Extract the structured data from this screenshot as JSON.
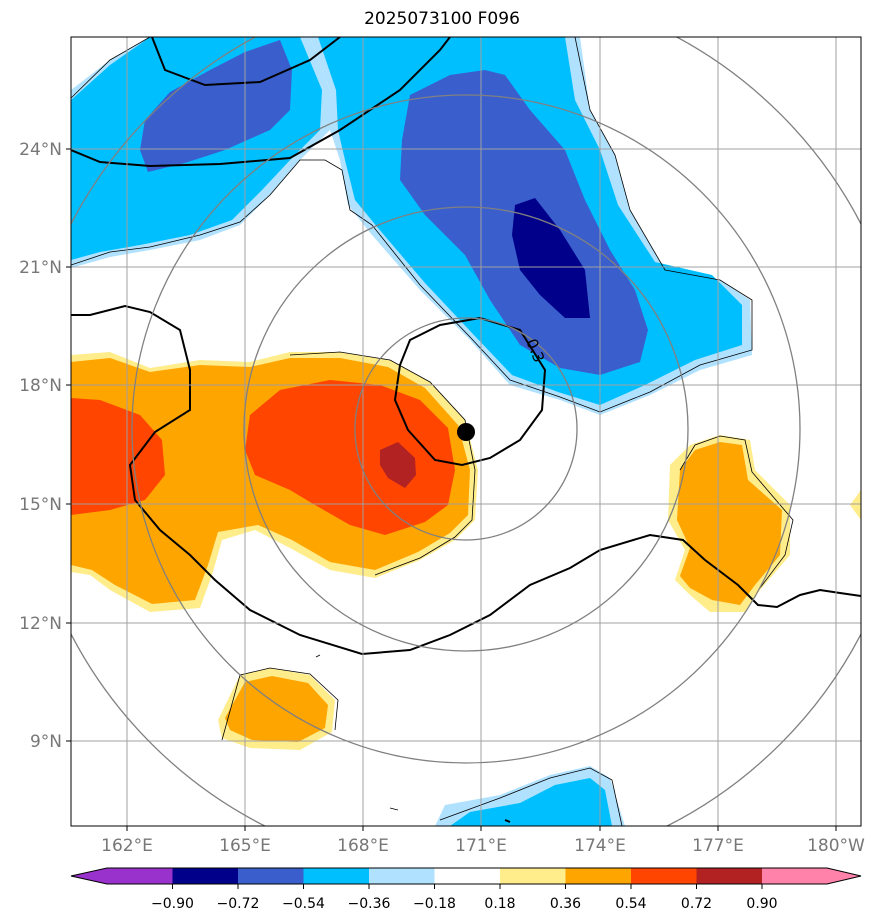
{
  "title": "2025073100 F096",
  "map": {
    "lat_labels": [
      "24°N",
      "21°N",
      "18°N",
      "15°N",
      "12°N",
      "9°N"
    ],
    "lon_labels": [
      "162°E",
      "165°E",
      "168°E",
      "171°E",
      "174°E",
      "177°E",
      "180°W"
    ],
    "contour_label": "0.3",
    "colors": {
      "neg_090": "#9932cc",
      "neg_072": "#00008b",
      "neg_054": "#3a5fcd",
      "neg_036": "#00bfff",
      "neg_018": "#b0e2ff",
      "neutral": "#ffffff",
      "pos_018": "#ffec8b",
      "pos_036": "#ffa500",
      "pos_054": "#ff4500",
      "pos_072": "#b22222",
      "pos_090": "#ff82ab"
    }
  },
  "colorbar": {
    "labels": [
      "−0.90",
      "−0.72",
      "−0.54",
      "−0.36",
      "−0.18",
      "0.18",
      "0.36",
      "0.54",
      "0.72",
      "0.90"
    ]
  }
}
